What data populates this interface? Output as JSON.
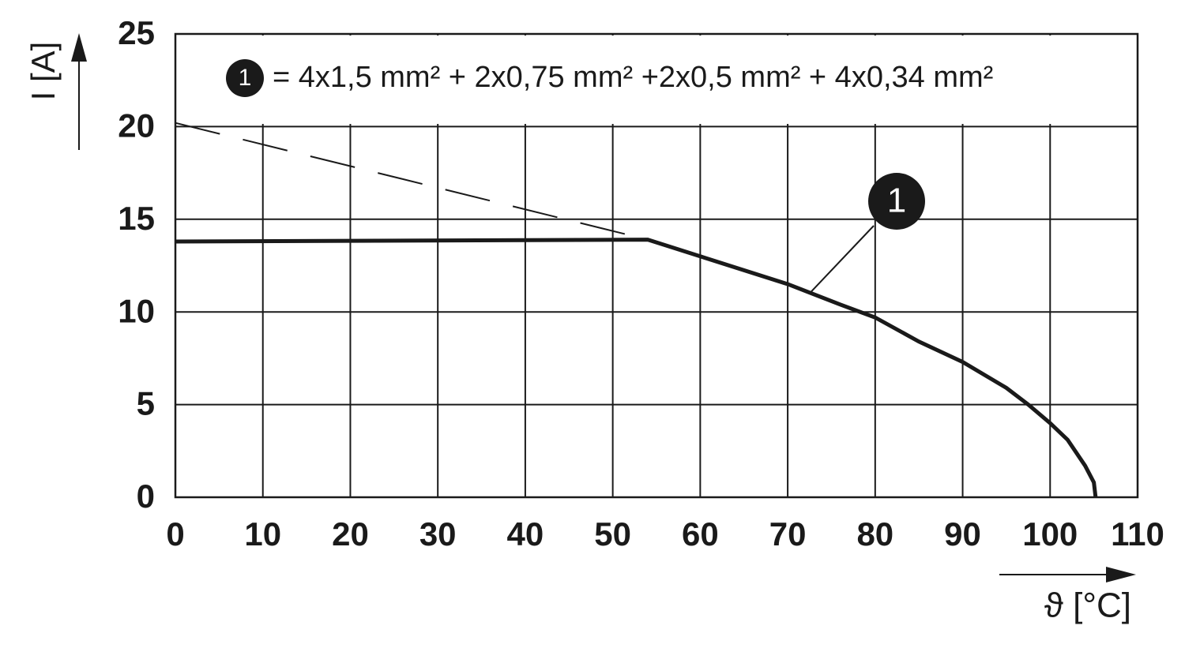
{
  "chart_data": {
    "type": "line",
    "xlabel": "ϑ [°C]",
    "ylabel": "I [A]",
    "xlim": [
      0,
      110
    ],
    "xticks": [
      0,
      10,
      20,
      30,
      40,
      50,
      60,
      70,
      80,
      90,
      100,
      110
    ],
    "ylim": [
      0,
      25
    ],
    "yticks": [
      0,
      5,
      10,
      15,
      20,
      25
    ],
    "grid": true,
    "series": [
      {
        "name": "1",
        "description": "= 4x1,5 mm² + 2x0,75 mm² +2x0,5 mm² + 4x0,34 mm²",
        "color": "#1a1a1a",
        "dash": false,
        "x": [
          0,
          54,
          60,
          70,
          76,
          80,
          85,
          90,
          95,
          97.5,
          100,
          102,
          104,
          105,
          105.2
        ],
        "values": [
          13.8,
          13.9,
          13.0,
          11.5,
          10.4,
          9.7,
          8.4,
          7.3,
          5.9,
          5.0,
          4.0,
          3.1,
          1.7,
          0.8,
          0
        ]
      },
      {
        "color": "#1a1a1a",
        "dash": true,
        "x": [
          0,
          54
        ],
        "values": [
          20.2,
          13.9
        ]
      }
    ]
  }
}
